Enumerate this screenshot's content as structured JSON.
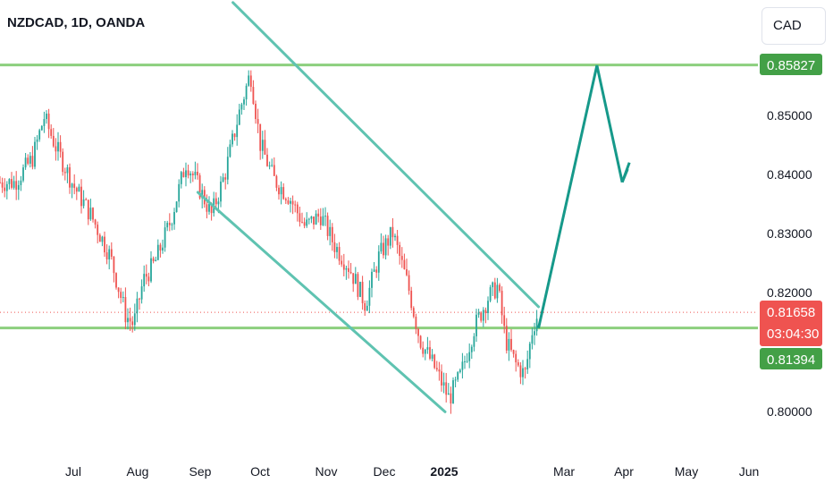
{
  "header": {
    "title": "NZDCAD, 1D, OANDA",
    "currency_button": "CAD"
  },
  "colors": {
    "up": "#26a69a",
    "down": "#ef5350",
    "level_line": "#8ccf7e",
    "channel": "#5fc3b1",
    "arrow": "#16998a",
    "tag_green": "#43a047",
    "tag_red": "#ef5350",
    "current_dotted": "#ef5350"
  },
  "chart_data": {
    "type": "candlestick",
    "symbol": "NZDCAD",
    "timeframe": "1D",
    "source": "OANDA",
    "x_tick_labels": [
      "Jul",
      "Aug",
      "Sep",
      "Oct",
      "Nov",
      "Dec",
      "2025",
      "Mar",
      "Apr",
      "May",
      "Jun"
    ],
    "y_tick_labels": [
      "0.80000",
      "0.82000",
      "0.83000",
      "0.84000",
      "0.85000"
    ],
    "ylim": [
      0.7933,
      0.8655
    ],
    "grid": false,
    "price_tags": [
      {
        "label": "0.85827",
        "value": 0.85827,
        "style": "green"
      },
      {
        "label": "0.81658",
        "value": 0.81658,
        "style": "red"
      },
      {
        "label": "03:04:30",
        "value": 0.81658,
        "style": "red-countdown"
      },
      {
        "label": "0.81394",
        "value": 0.81394,
        "style": "green"
      }
    ],
    "horizontal_levels": [
      0.85827,
      0.81394
    ],
    "current_price": 0.81658,
    "channel": {
      "upper": [
        [
          "2024-09-21",
          0.8688
        ],
        [
          "2025-02-25",
          0.8175
        ]
      ],
      "lower": [
        [
          "2024-09-03",
          0.8368
        ],
        [
          "2025-01-08",
          0.7998
        ]
      ]
    },
    "projection_path": [
      [
        "2025-02-25",
        0.8139
      ],
      [
        "2025-03-27",
        0.8582
      ],
      [
        "2025-04-09",
        0.8385
      ]
    ],
    "candles_approx": [
      [
        "2024-06-01",
        0.8385
      ],
      [
        "2024-06-10",
        0.8425
      ],
      [
        "2024-06-16",
        0.8495
      ],
      [
        "2024-06-22",
        0.8445
      ],
      [
        "2024-07-01",
        0.838
      ],
      [
        "2024-07-10",
        0.833
      ],
      [
        "2024-07-20",
        0.826
      ],
      [
        "2024-07-28",
        0.816
      ],
      [
        "2024-08-01",
        0.8145
      ],
      [
        "2024-08-06",
        0.822
      ],
      [
        "2024-08-12",
        0.825
      ],
      [
        "2024-08-20",
        0.832
      ],
      [
        "2024-08-28",
        0.842
      ],
      [
        "2024-09-03",
        0.838
      ],
      [
        "2024-09-10",
        0.833
      ],
      [
        "2024-09-17",
        0.84
      ],
      [
        "2024-09-24",
        0.85
      ],
      [
        "2024-09-30",
        0.857
      ],
      [
        "2024-10-05",
        0.845
      ],
      [
        "2024-10-12",
        0.839
      ],
      [
        "2024-10-20",
        0.836
      ],
      [
        "2024-10-28",
        0.831
      ],
      [
        "2024-11-05",
        0.833
      ],
      [
        "2024-11-12",
        0.828
      ],
      [
        "2024-11-20",
        0.824
      ],
      [
        "2024-11-28",
        0.818
      ],
      [
        "2024-12-05",
        0.826
      ],
      [
        "2024-12-12",
        0.83
      ],
      [
        "2024-12-20",
        0.821
      ],
      [
        "2024-12-26",
        0.812
      ],
      [
        "2025-01-03",
        0.807
      ],
      [
        "2025-01-10",
        0.802
      ],
      [
        "2025-01-16",
        0.806
      ],
      [
        "2025-01-23",
        0.814
      ],
      [
        "2025-01-30",
        0.819
      ],
      [
        "2025-02-04",
        0.821
      ],
      [
        "2025-02-08",
        0.812
      ],
      [
        "2025-02-13",
        0.808
      ],
      [
        "2025-02-18",
        0.806
      ],
      [
        "2025-02-22",
        0.814
      ],
      [
        "2025-02-25",
        0.8166
      ]
    ]
  }
}
